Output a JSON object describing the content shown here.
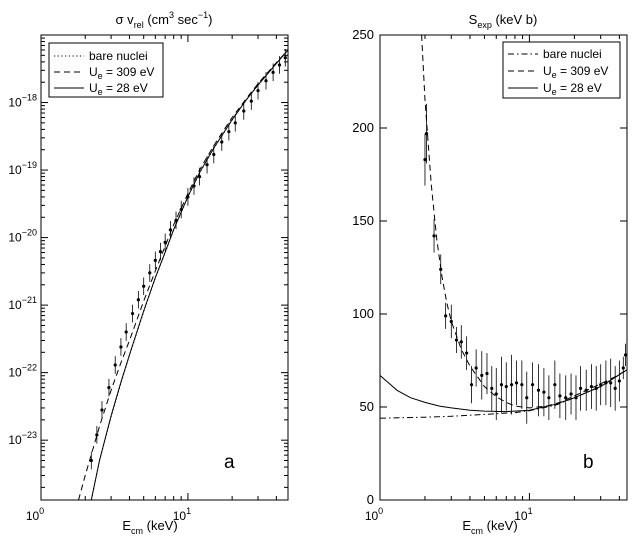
{
  "chart_data": [
    {
      "type": "line",
      "panel_label": "a",
      "title": {
        "main": "σ v",
        "main_sub": "rel",
        "unit_open": " (cm",
        "unit_sup": "3",
        "unit_mid": " sec",
        "unit_sup2": "−1",
        "unit_close": ")"
      },
      "xlabel": {
        "main": "E",
        "sub": "cm",
        "unit": " (keV)"
      },
      "xscale": "log",
      "yscale": "log",
      "xlim": [
        1,
        48
      ],
      "ylim": [
        1.3e-24,
        1e-17
      ],
      "x_ticks": [
        {
          "v": 1,
          "base": "10",
          "exp": "0"
        },
        {
          "v": 10,
          "base": "10",
          "exp": "1"
        }
      ],
      "y_ticks": [
        {
          "v": 1e-23,
          "base": "10",
          "exp": "−23"
        },
        {
          "v": 1e-22,
          "base": "10",
          "exp": "−22"
        },
        {
          "v": 1e-21,
          "base": "10",
          "exp": "−21"
        },
        {
          "v": 1e-20,
          "base": "10",
          "exp": "−20"
        },
        {
          "v": 1e-19,
          "base": "10",
          "exp": "−19"
        },
        {
          "v": 1e-18,
          "base": "10",
          "exp": "−18"
        }
      ],
      "legend": {
        "position": "top-left",
        "entries": [
          {
            "style": "dotted",
            "label": "bare nuclei",
            "sub": "",
            "rest": ""
          },
          {
            "style": "dashed",
            "label": "U",
            "sub": "e",
            "rest": " = 309 eV"
          },
          {
            "style": "solid",
            "label": "U",
            "sub": "e",
            "rest": " = 28 eV"
          }
        ]
      },
      "series": [
        {
          "name": "bare nuclei",
          "style": "dotted",
          "x": [
            2.2,
            2.5,
            3,
            3.5,
            4,
            5,
            6,
            7,
            8,
            10,
            12,
            15,
            20,
            25,
            30,
            40,
            48
          ],
          "y": [
            1.3e-24,
            5e-24,
            2.2e-23,
            7e-23,
            1.8e-22,
            8e-22,
            2.5e-21,
            6e-21,
            1.3e-20,
            4e-20,
            9e-20,
            2.1e-19,
            5.5e-19,
            1.1e-18,
            1.8e-18,
            3.8e-18,
            6e-18
          ]
        },
        {
          "name": "U_e = 309 eV",
          "style": "dashed",
          "x": [
            1.8,
            2,
            2.5,
            3,
            3.5,
            4,
            5,
            6,
            7,
            8,
            10,
            12,
            15,
            20,
            25,
            30,
            40,
            48
          ],
          "y": [
            1.3e-24,
            3e-24,
            1.6e-23,
            5.5e-23,
            1.4e-22,
            3e-22,
            1.15e-21,
            3.2e-21,
            7.5e-21,
            1.55e-20,
            4.5e-20,
            1e-19,
            2.3e-19,
            6e-19,
            1.15e-18,
            1.9e-18,
            3.9e-18,
            6e-18
          ]
        },
        {
          "name": "U_e = 28 eV",
          "style": "solid",
          "x": [
            2.2,
            2.5,
            3,
            3.5,
            4,
            5,
            6,
            7,
            8,
            10,
            12,
            15,
            20,
            25,
            30,
            40,
            48
          ],
          "y": [
            1.3e-24,
            5e-24,
            2.3e-23,
            7.2e-23,
            1.85e-22,
            8.2e-22,
            2.55e-21,
            6.1e-21,
            1.32e-20,
            4.05e-20,
            9.1e-20,
            2.12e-19,
            5.55e-19,
            1.1e-18,
            1.82e-18,
            3.8e-18,
            6e-18
          ]
        }
      ],
      "data_points": {
        "x": [
          2.2,
          2.4,
          2.6,
          2.9,
          3.2,
          3.5,
          3.8,
          4.2,
          4.6,
          5.0,
          5.5,
          6.0,
          6.5,
          7.0,
          7.6,
          8.3,
          9.0,
          10,
          11,
          12,
          13.5,
          15,
          17,
          19,
          21,
          24,
          27,
          30,
          34,
          38,
          42,
          46
        ],
        "y": [
          5e-24,
          1.2e-23,
          2.8e-23,
          6e-23,
          1.3e-22,
          2.4e-22,
          4e-22,
          7.5e-22,
          1.2e-21,
          1.9e-21,
          3e-21,
          4.6e-21,
          6.2e-21,
          8.5e-21,
          1.3e-20,
          1.8e-20,
          2.6e-20,
          4e-20,
          5.8e-20,
          8e-20,
          1.2e-19,
          1.7e-19,
          2.6e-19,
          3.7e-19,
          5e-19,
          7.5e-19,
          1.05e-18,
          1.5e-18,
          2.1e-18,
          2.8e-18,
          3.6e-18,
          4.6e-18
        ],
        "err_factor": 1.35
      }
    },
    {
      "type": "line",
      "panel_label": "b",
      "title": {
        "main": "S",
        "main_sub": "exp",
        "unit_open": " (keV b)",
        "unit_sup": "",
        "unit_mid": "",
        "unit_sup2": "",
        "unit_close": ""
      },
      "xlabel": {
        "main": "E",
        "sub": "cm",
        "unit": " (keV)"
      },
      "xscale": "log",
      "yscale": "linear",
      "xlim": [
        1,
        45
      ],
      "ylim": [
        0,
        250
      ],
      "x_ticks": [
        {
          "v": 1,
          "base": "10",
          "exp": "0"
        },
        {
          "v": 10,
          "base": "10",
          "exp": "1"
        }
      ],
      "y_ticks": [
        {
          "v": 0,
          "label": "0"
        },
        {
          "v": 50,
          "label": "50"
        },
        {
          "v": 100,
          "label": "100"
        },
        {
          "v": 150,
          "label": "150"
        },
        {
          "v": 200,
          "label": "200"
        },
        {
          "v": 250,
          "label": "250"
        }
      ],
      "legend": {
        "position": "top-right",
        "entries": [
          {
            "style": "dashdot",
            "label": "bare nuclei",
            "sub": "",
            "rest": ""
          },
          {
            "style": "dashed",
            "label": "U",
            "sub": "e",
            "rest": " = 309 eV"
          },
          {
            "style": "solid",
            "label": "U",
            "sub": "e",
            "rest": " = 28 eV"
          }
        ]
      },
      "series": [
        {
          "name": "bare nuclei",
          "style": "dashdot",
          "x": [
            1,
            2,
            3,
            5,
            8,
            10,
            15,
            20,
            30,
            45
          ],
          "y": [
            44,
            44.5,
            45,
            46,
            47,
            48,
            51,
            55,
            61,
            70
          ]
        },
        {
          "name": "U_e = 309 eV",
          "style": "dashed",
          "x": [
            1.9,
            2.0,
            2.2,
            2.4,
            2.6,
            2.8,
            3.0,
            3.5,
            4.0,
            5.0,
            6.0,
            7.0,
            8.0,
            10,
            13,
            16,
            20,
            25,
            30,
            38,
            45
          ],
          "y": [
            250,
            215,
            170,
            140,
            120,
            106,
            96,
            81,
            72,
            61,
            55.5,
            52.5,
            50.5,
            49.5,
            50.5,
            52.5,
            56,
            59.5,
            62.5,
            66.5,
            70
          ]
        },
        {
          "name": "U_e = 28 eV",
          "style": "solid",
          "x": [
            1,
            1.3,
            1.6,
            2,
            2.5,
            3,
            4,
            5,
            7,
            10,
            15,
            20,
            30,
            45
          ],
          "y": [
            67,
            59,
            55,
            52.5,
            50.5,
            49.5,
            48.3,
            47.8,
            47.5,
            48.3,
            51.5,
            55,
            61,
            70
          ]
        }
      ],
      "data_points": {
        "x": [
          2.0,
          2.05,
          2.3,
          2.55,
          2.75,
          3.0,
          3.25,
          3.5,
          3.8,
          4.1,
          4.4,
          4.8,
          5.2,
          5.6,
          6.0,
          6.5,
          7.0,
          7.6,
          8.2,
          8.9,
          9.6,
          10.5,
          11.5,
          12.5,
          13.5,
          14.8,
          16,
          17.5,
          19,
          20.5,
          22,
          24,
          26,
          28,
          30,
          32.5,
          35,
          37.5,
          40,
          42.5,
          44
        ],
        "y": [
          183,
          197,
          142,
          124,
          99,
          96,
          86,
          85,
          79,
          62,
          71,
          67,
          68,
          60,
          57,
          62,
          61,
          62,
          63,
          62,
          55,
          62,
          59,
          58,
          55,
          62,
          56,
          55,
          57,
          55,
          60,
          59,
          61,
          60,
          62,
          63,
          63,
          60,
          64,
          71,
          78
        ],
        "err": [
          14,
          16,
          9,
          8,
          7,
          9,
          7,
          9,
          9,
          10,
          10,
          13,
          11,
          12,
          14,
          15,
          13,
          16,
          12,
          13,
          14,
          12,
          14,
          13,
          12,
          13,
          12,
          12,
          11,
          12,
          12,
          11,
          12,
          12,
          11,
          12,
          13,
          12,
          11,
          6,
          6
        ]
      }
    }
  ]
}
